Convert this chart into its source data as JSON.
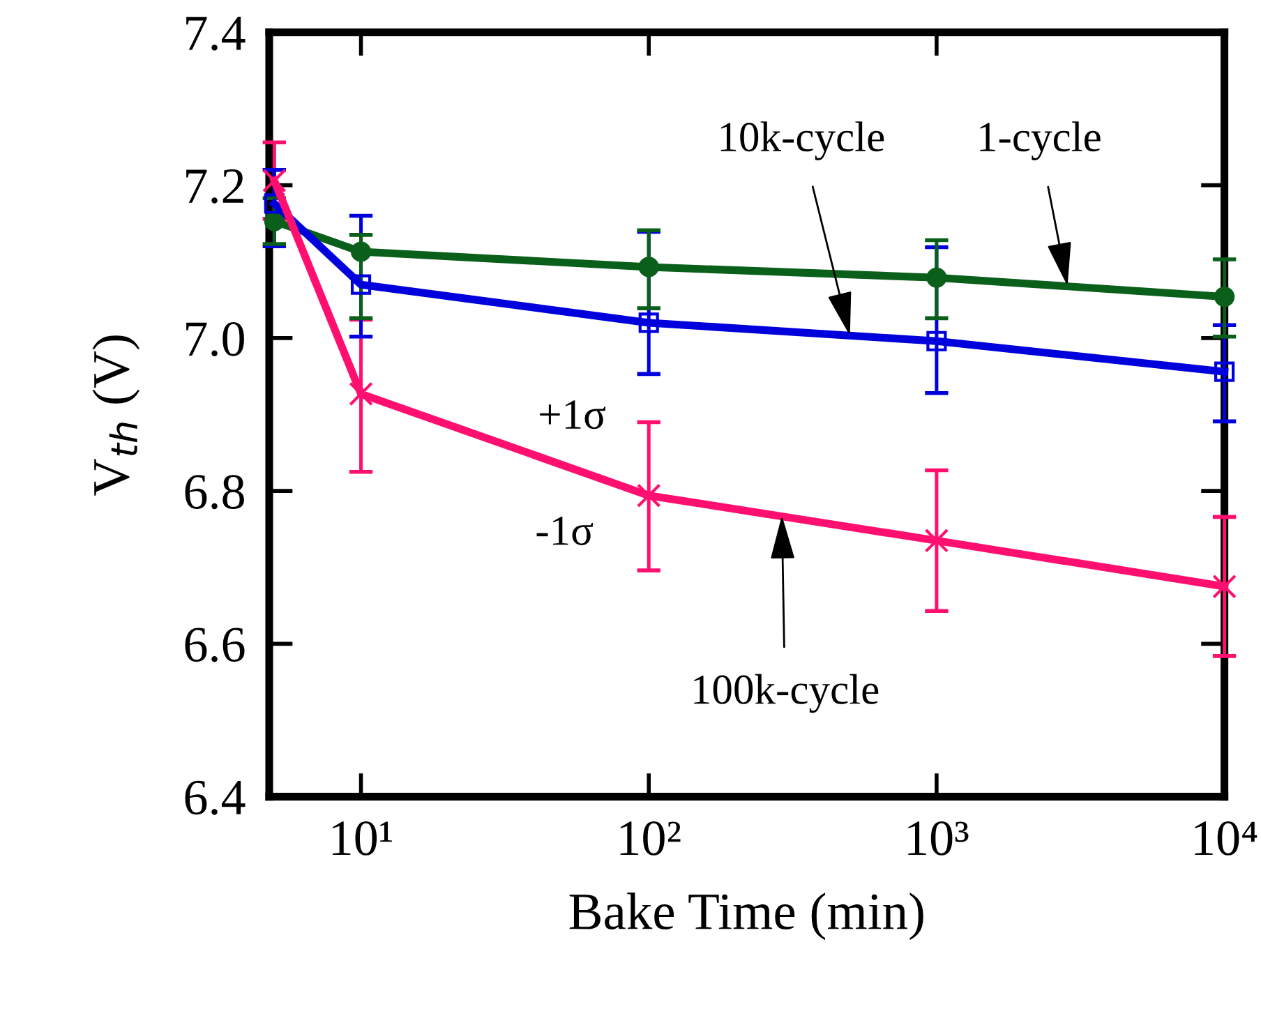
{
  "chart_data": {
    "type": "line",
    "xlabel": "Bake Time (min)",
    "ylabel": "V$_{th}$ (V)",
    "x": [
      5,
      10,
      100,
      1000,
      10000
    ],
    "series": [
      {
        "color": "#0a5f1a",
        "marker": "circle",
        "values": [
          7.153,
          7.113,
          7.093,
          7.079,
          7.054
        ],
        "errors": [
          0.03,
          [
            7.135,
            7.026
          ],
          [
            7.141,
            7.039
          ],
          [
            7.128,
            7.026
          ],
          [
            7.103,
            7.002
          ]
        ]
      },
      {
        "color": "#0000dd",
        "marker": "square",
        "values": [
          7.176,
          7.07,
          7.02,
          6.996,
          6.956
        ],
        "errors": [
          [
            7.22,
            7.12
          ],
          [
            7.16,
            7.002
          ],
          [
            7.139,
            6.953
          ],
          [
            7.119,
            6.928
          ],
          [
            7.017,
            6.891
          ]
        ]
      },
      {
        "color": "#ff1070",
        "marker": "cross",
        "values": [
          7.206,
          6.927,
          6.794,
          6.735,
          6.675
        ],
        "errors": [
          0.05,
          [
            7.024,
            6.825
          ],
          [
            6.89,
            6.696
          ],
          [
            6.827,
            6.643
          ],
          [
            6.766,
            6.584
          ]
        ]
      }
    ],
    "log": "x",
    "xlim": [
      4.8,
      10000
    ],
    "xticks": [
      {
        "value": 10,
        "label": "10¹"
      },
      {
        "value": 100,
        "label": "10²"
      },
      {
        "value": 1000,
        "label": "10³"
      },
      {
        "value": 10000,
        "label": "10⁴"
      }
    ],
    "ylim": [
      6.4,
      7.4
    ],
    "yticks": [
      6.4,
      6.6,
      6.8,
      {
        "value": 7,
        "label": "7.0"
      },
      7.2,
      7.4
    ],
    "line_style": "solid",
    "grid": false,
    "legend": false,
    "annotations": [
      {
        "text": "10k-cycle",
        "x": 500,
        "y": 7.003
      },
      {
        "text": "1-cycle",
        "x": 2850,
        "y": 7.068
      },
      "+1σ",
      "-1σ",
      {
        "text": "100k-cycle",
        "x": 290,
        "y": 6.768
      }
    ]
  }
}
